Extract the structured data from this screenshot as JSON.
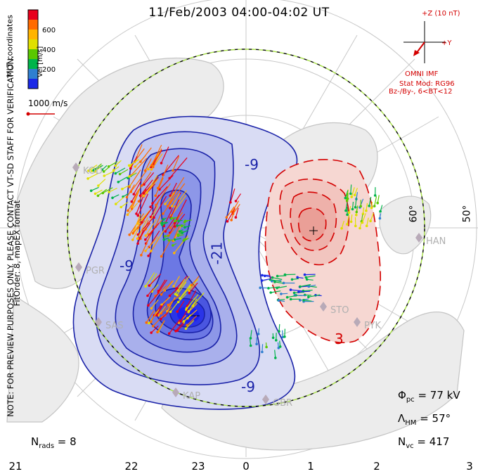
{
  "title": "11/Feb/2003 04:00-04:02 UT",
  "side_notes": {
    "line1": "NOTE: FOR PREVIEW PURPOSES ONLY. PLEASE CONTACT VT-SD STAFF FOR VERIFICATION.",
    "line2": "FitOrder: 8, mapEX format",
    "coords": "MLT coordinates"
  },
  "velocity_scale": {
    "label": "Vel [m/s]",
    "ticks": [
      "600",
      "400",
      "200"
    ],
    "colors": [
      "#e8001c",
      "#ff6a00",
      "#ffb400",
      "#e0e000",
      "#5ac800",
      "#00b44a",
      "#2f7fd0",
      "#1a28e6"
    ],
    "reference_vector_label": "1000 m/s"
  },
  "imf": {
    "z_label": "+Z (10 nT)",
    "y_label": "+Y",
    "source": "OMNI IMF",
    "model_line1": "Stat Mod: RG96",
    "model_line2": "Bz-/By-, 6<BT<12"
  },
  "stats": {
    "phi_pc": "Φ",
    "phi_sub": "pc",
    "phi_value": " = 77 kV",
    "lambda": "Λ",
    "lambda_sub": "HM",
    "lambda_value": " = 57°",
    "nvc": "N",
    "nvc_sub": "vc",
    "nvc_value": " = 417",
    "nrads": "N",
    "nrads_sub": "rads",
    "nrads_value": " = 8"
  },
  "latitude_labels": [
    "60°",
    "50°"
  ],
  "contour_labels": [
    "-9",
    "-21",
    "-9",
    "-9",
    "3"
  ],
  "hour_labels": [
    "21",
    "22",
    "23",
    "0",
    "1",
    "2",
    "3"
  ],
  "stations": [
    "PGR",
    "GBR",
    "KAP",
    "SAS",
    "STO",
    "PYK",
    "HAN",
    "KOD"
  ],
  "colors": {
    "negative_fill_light": "#d9dcf4",
    "negative_fill_deep": "#1b1ff0",
    "positive_fill": "#f6d7d2",
    "negative_contour": "#1a22a8",
    "positive_contour": "#d40000",
    "land": "#ececec",
    "coast": "#c4c4c4",
    "boundary_dash": "#a8e048"
  }
}
